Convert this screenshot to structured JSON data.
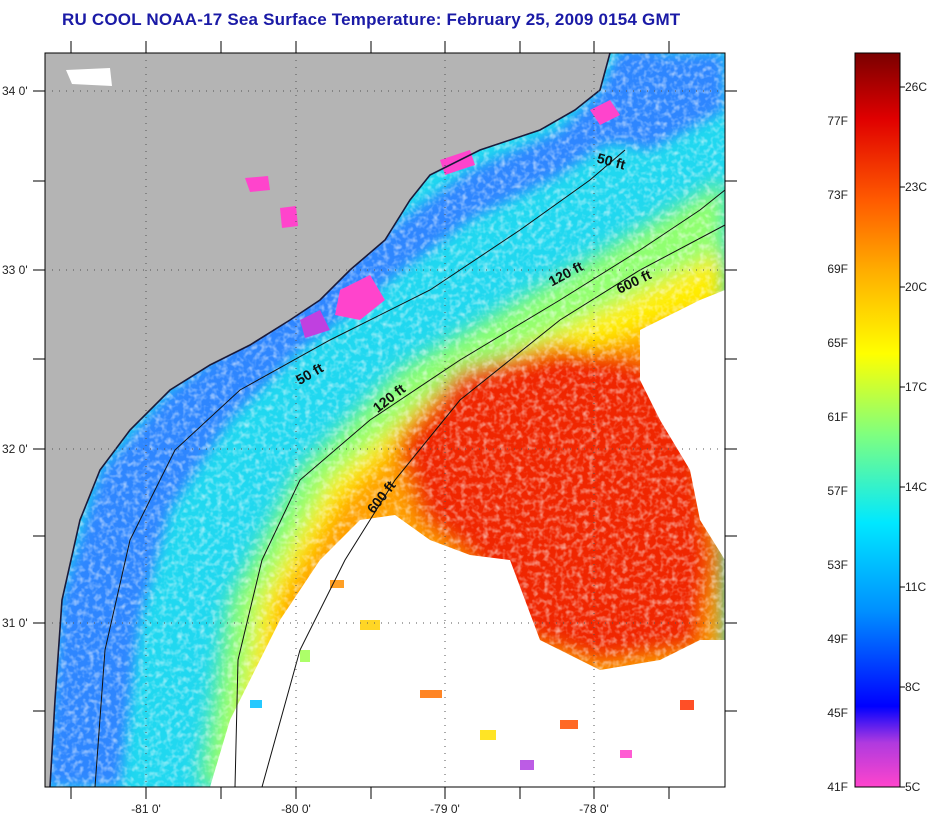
{
  "title": "RU COOL  NOAA-17  Sea Surface Temperature:  February 25, 2009 0154 GMT",
  "map": {
    "lat_labels": [
      "34 0'",
      "33 0'",
      "32 0'",
      "31 0'"
    ],
    "lon_labels": [
      "-81 0'",
      "-80 0'",
      "-79 0'",
      "-78 0'"
    ],
    "contour_labels": [
      "50 ft",
      "120 ft",
      "600 ft",
      "50 ft",
      "120 ft",
      "600 ft"
    ],
    "land_color": "#b4b4b4",
    "cloud_color": "#ffffff"
  },
  "colorbar": {
    "fahrenheit_labels": [
      "77F",
      "73F",
      "69F",
      "65F",
      "61F",
      "57F",
      "53F",
      "49F",
      "45F",
      "41F"
    ],
    "celsius_labels": [
      "26C",
      "23C",
      "20C",
      "17C",
      "14C",
      "11C",
      "8C",
      "5C"
    ],
    "colors": [
      "#ff33cc",
      "#7a2fd0",
      "#0000ff",
      "#00a0ff",
      "#00e6ff",
      "#66ff99",
      "#ffff00",
      "#ffb000",
      "#ff5000",
      "#e00000",
      "#7a0000"
    ]
  }
}
